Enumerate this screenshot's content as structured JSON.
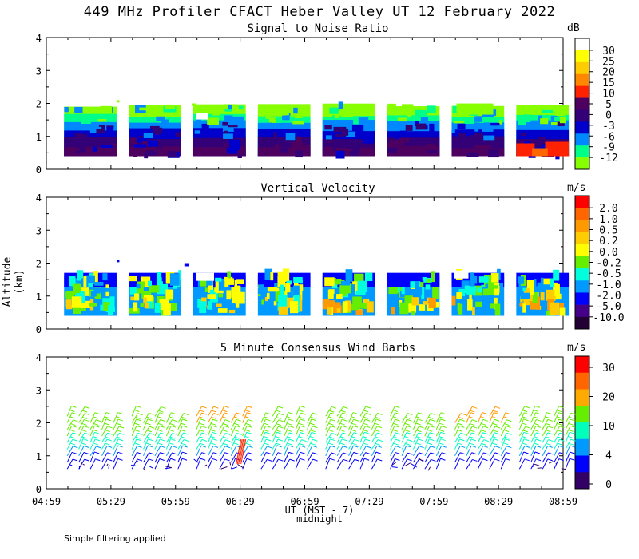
{
  "title": "449 MHz Profiler CFACT Heber Valley UT 12 February 2022",
  "footnote": "Simple filtering applied",
  "chart_data": [
    {
      "type": "heatmap",
      "title": "Signal to Noise Ratio",
      "ylabel": "Altitude (km)",
      "xlabel": "UT (MST - 7)",
      "xlabel_note": "midnight",
      "ylim": [
        0,
        4
      ],
      "yticks": [
        "0",
        "1",
        "2",
        "3",
        "4"
      ],
      "x_ticks": [
        "04:59",
        "05:29",
        "05:59",
        "06:29",
        "06:59",
        "07:29",
        "07:59",
        "08:29",
        "08:59"
      ],
      "colorbar_unit": "dB",
      "colorbar_labels": [
        "30",
        "25",
        "20",
        "15",
        "10",
        "5",
        "0",
        "-3",
        "-6",
        "-9",
        "-12"
      ],
      "colors": [
        "#ffffff",
        "#ffff00",
        "#ffcc00",
        "#ff8800",
        "#ff2200",
        "#4d0060",
        "#330077",
        "#0000cc",
        "#0088ff",
        "#00ff88",
        "#88ff00"
      ],
      "data_top_km": 1.8,
      "data_bottom_km": 0.4
    },
    {
      "type": "heatmap",
      "title": "Vertical Velocity",
      "ylim": [
        0,
        4
      ],
      "yticks": [
        "0",
        "1",
        "2",
        "3",
        "4"
      ],
      "colorbar_unit": "m/s",
      "colorbar_labels": [
        "2.0",
        "1.0",
        "0.5",
        "0.2",
        "0.0",
        "-0.2",
        "-0.5",
        "-1.0",
        "-2.0",
        "-5.0",
        "-10.0"
      ],
      "colors": [
        "#ff0000",
        "#ff6600",
        "#ff9900",
        "#ffcc00",
        "#ffff00",
        "#66ee00",
        "#00ffdd",
        "#0099ff",
        "#0000ff",
        "#440088",
        "#220033"
      ],
      "data_top_km": 1.8,
      "data_bottom_km": 0.4
    },
    {
      "type": "scatter",
      "title": "5 Minute Consensus Wind Barbs",
      "ylim": [
        0,
        4
      ],
      "yticks": [
        "0",
        "1",
        "2",
        "3",
        "4"
      ],
      "colorbar_unit": "m/s",
      "colorbar_labels": [
        "30",
        "20",
        "10",
        "4",
        "0"
      ],
      "colors": [
        "#ff0000",
        "#ff6600",
        "#ffaa00",
        "#66ee00",
        "#00ffbb",
        "#0099ff",
        "#0000ff",
        "#330066"
      ],
      "barb_heights_km": [
        0.6,
        0.8,
        1.0,
        1.2,
        1.4,
        1.6,
        1.8,
        2.0,
        2.2
      ]
    }
  ]
}
